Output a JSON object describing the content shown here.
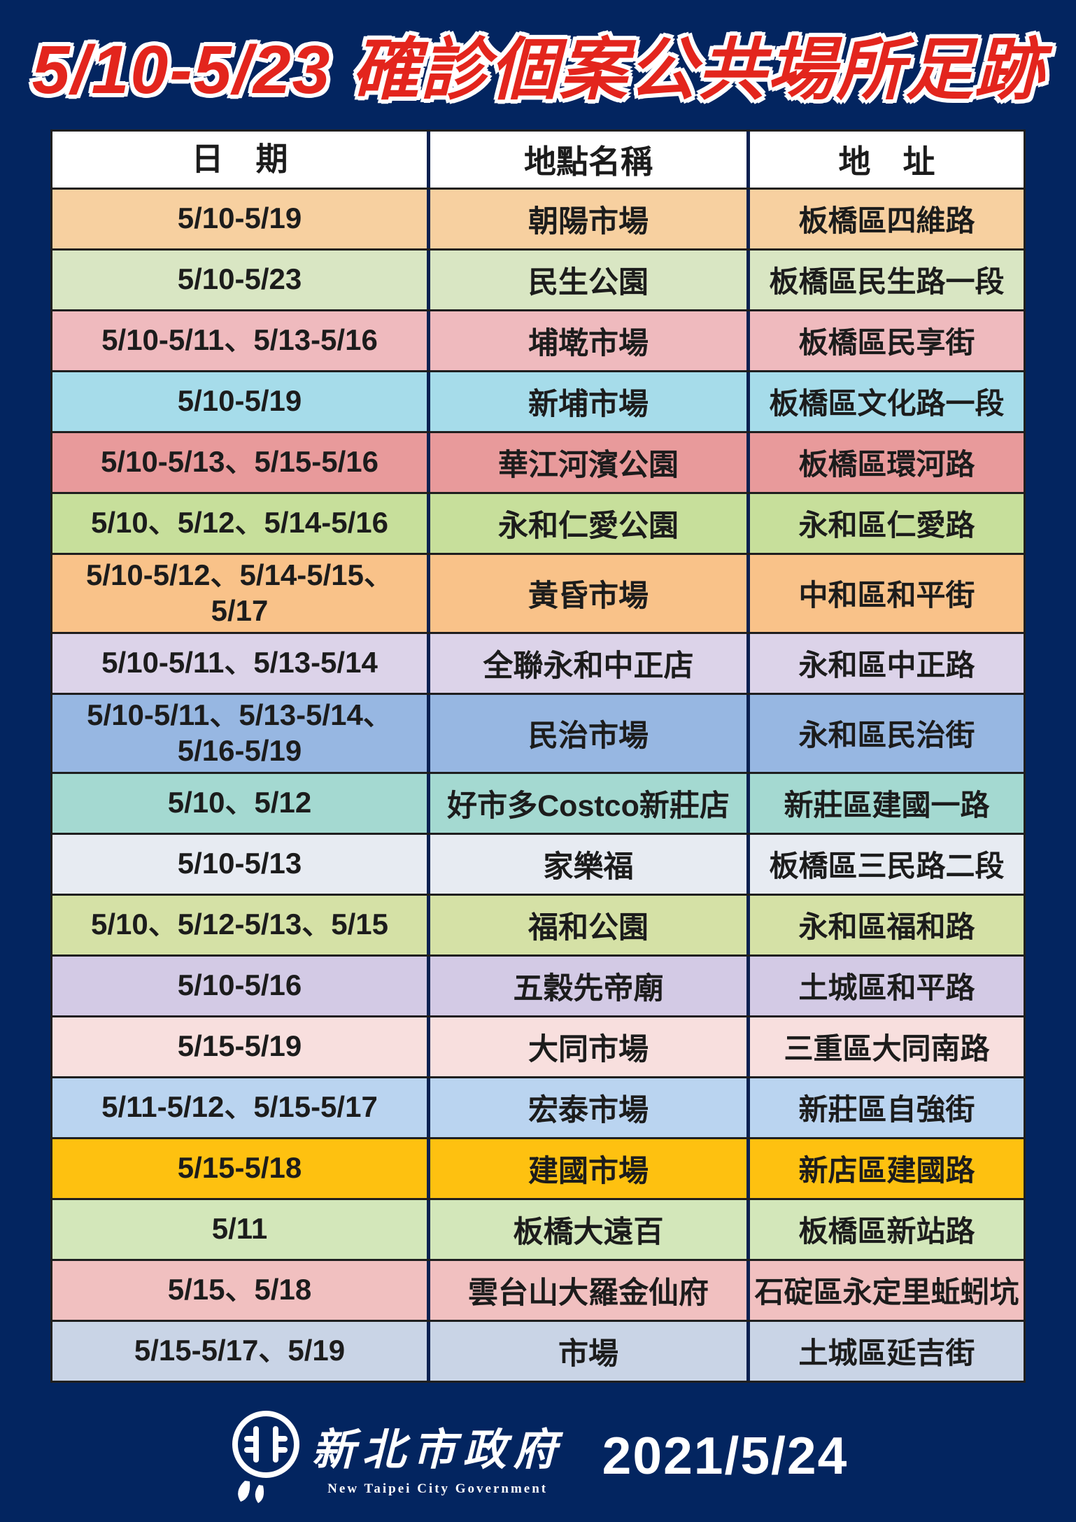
{
  "title": "5/10-5/23 確診個案公共場所足跡",
  "table": {
    "headers": [
      "日　期",
      "地點名稱",
      "地　址"
    ],
    "rows": [
      {
        "date": "5/10-5/19",
        "location": "朝陽市場",
        "address": "板橋區四維路",
        "color": "#f7d0a0"
      },
      {
        "date": "5/10-5/23",
        "location": "民生公園",
        "address": "板橋區民生路一段",
        "color": "#d9e6c3"
      },
      {
        "date": "5/10-5/11、5/13-5/16",
        "location": "埔墘市場",
        "address": "板橋區民享街",
        "color": "#efbabe"
      },
      {
        "date": "5/10-5/19",
        "location": "新埔市場",
        "address": "板橋區文化路一段",
        "color": "#a6dcea"
      },
      {
        "date": "5/10-5/13、5/15-5/16",
        "location": "華江河濱公園",
        "address": "板橋區環河路",
        "color": "#e89a9b"
      },
      {
        "date": "5/10、5/12、5/14-5/16",
        "location": "永和仁愛公園",
        "address": "永和區仁愛路",
        "color": "#c7df9b"
      },
      {
        "date": "5/10-5/12、5/14-5/15、\n5/17",
        "location": "黃昏市場",
        "address": "中和區和平街",
        "color": "#f9c289"
      },
      {
        "date": "5/10-5/11、5/13-5/14",
        "location": "全聯永和中正店",
        "address": "永和區中正路",
        "color": "#dcd3e9"
      },
      {
        "date": "5/10-5/11、5/13-5/14、\n5/16-5/19",
        "location": "民治市場",
        "address": "永和區民治街",
        "color": "#97b7e2"
      },
      {
        "date": "5/10、5/12",
        "location": "好市多Costco新莊店",
        "address": "新莊區建國一路",
        "color": "#a4d9d1"
      },
      {
        "date": "5/10-5/13",
        "location": "家樂福",
        "address": "板橋區三民路二段",
        "color": "#e7ebf2"
      },
      {
        "date": "5/10、5/12-5/13、5/15",
        "location": "福和公園",
        "address": "永和區福和路",
        "color": "#d5e1a6"
      },
      {
        "date": "5/10-5/16",
        "location": "五穀先帝廟",
        "address": "土城區和平路",
        "color": "#d3cae5"
      },
      {
        "date": "5/15-5/19",
        "location": "大同市場",
        "address": "三重區大同南路",
        "color": "#f8dfde"
      },
      {
        "date": "5/11-5/12、5/15-5/17",
        "location": "宏泰市場",
        "address": "新莊區自強街",
        "color": "#bad4f0"
      },
      {
        "date": "5/15-5/18",
        "location": "建國市場",
        "address": "新店區建國路",
        "color": "#fec110"
      },
      {
        "date": "5/11",
        "location": "板橋大遠百",
        "address": "板橋區新站路",
        "color": "#d3e7ba"
      },
      {
        "date": "5/15、5/18",
        "location": "雲台山大羅金仙府",
        "address": "石碇區永定里蚯蚓坑",
        "color": "#f1c0c0"
      },
      {
        "date": "5/15-5/17、5/19",
        "location": "市場",
        "address": "土城區延吉街",
        "color": "#c9d4e6"
      }
    ]
  },
  "footer": {
    "org_zh": "新北市政府",
    "org_en": "New Taipei City Government",
    "date": "2021/5/24",
    "logo_icon": "ntpc-emblem-icon"
  },
  "colors": {
    "page_background": "#032560",
    "title_text": "#e3251d",
    "title_outline": "#ffffff",
    "row_border": "#1f1f1f",
    "column_divider": "#0a2050",
    "cell_text": "#1c1c1c",
    "header_background": "#ffffff",
    "footer_text": "#ffffff"
  }
}
